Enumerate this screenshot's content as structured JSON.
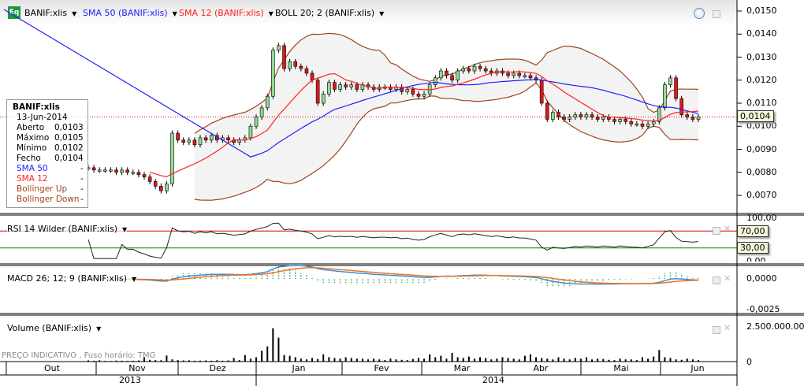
{
  "header": {
    "symbol": "BANIF:xlis",
    "sma50": "SMA 50 (BANIF:xlis)",
    "sma12": "SMA 12 (BANIF:xlis)",
    "boll": "BOLL 20; 2 (BANIF:xlis)",
    "logo": "Eq"
  },
  "info_box": {
    "title": "BANIF:xlis",
    "date": "13-Jun-2014",
    "rows": [
      {
        "label": "Aberto",
        "value": "0,0103"
      },
      {
        "label": "Máximo",
        "value": "0,0105"
      },
      {
        "label": "Mínimo",
        "value": "0,0102"
      },
      {
        "label": "Fecho",
        "value": "0,0104"
      },
      {
        "label": "SMA 50",
        "value": "-"
      },
      {
        "label": "SMA 12",
        "value": "-"
      },
      {
        "label": "Bollinger Up",
        "value": "-"
      },
      {
        "label": "Bollinger Down",
        "value": "-"
      }
    ]
  },
  "panels": {
    "rsi": "RSI 14 Wilder (BANIF:xlis)",
    "macd": "MACD 26; 12; 9 (BANIF:xlis)",
    "volume": "Volume (BANIF:xlis)",
    "watermark": "PREÇO INDICATIVO , Fuso horário: TMG"
  },
  "axes": {
    "price_ticks": [
      "0,0150",
      "0,0140",
      "0,0130",
      "0,0120",
      "0,0110",
      "0,0100",
      "0,0090",
      "0,0080",
      "0,0070"
    ],
    "last_price": "0,0104",
    "rsi_ticks": [
      "100,00",
      "70,00",
      "30,00",
      "0,00"
    ],
    "macd_ticks": [
      "0,0000",
      "-0,0025"
    ],
    "volume_ticks": [
      "2.500.000.000",
      "0"
    ],
    "months": [
      "Out",
      "Nov",
      "Dez",
      "Jan",
      "Fev",
      "Mar",
      "Abr",
      "Mai",
      "Jun"
    ],
    "years": [
      "2013",
      "2014"
    ]
  },
  "colors": {
    "sma50": "#2020ff",
    "sma12": "#ff2020",
    "boll": "#a0441a",
    "up": "#90dc90",
    "down": "#e01818",
    "rsi_high": "#d00000",
    "rsi_low": "#008000",
    "macd": "#3a8fd8",
    "signal": "#f07020"
  },
  "chart_data": {
    "type": "candlestick",
    "ylim": [
      0.0065,
      0.0152
    ],
    "closes": [
      0.0082,
      0.0081,
      0.0081,
      0.0081,
      0.0081,
      0.008,
      0.0081,
      0.008,
      0.008,
      0.0079,
      0.0078,
      0.0076,
      0.0074,
      0.0072,
      0.0075,
      0.0097,
      0.0094,
      0.0093,
      0.0094,
      0.0092,
      0.0095,
      0.0094,
      0.0096,
      0.0094,
      0.0095,
      0.0094,
      0.0093,
      0.0094,
      0.0095,
      0.01,
      0.0104,
      0.0108,
      0.0113,
      0.0133,
      0.0135,
      0.0125,
      0.0128,
      0.0126,
      0.0125,
      0.0123,
      0.012,
      0.011,
      0.0114,
      0.0119,
      0.0116,
      0.0118,
      0.0117,
      0.0118,
      0.0116,
      0.0118,
      0.0117,
      0.0116,
      0.0117,
      0.0117,
      0.0116,
      0.0117,
      0.0115,
      0.0116,
      0.0114,
      0.0113,
      0.0114,
      0.0118,
      0.0121,
      0.0124,
      0.0122,
      0.012,
      0.0124,
      0.0125,
      0.0124,
      0.0126,
      0.0125,
      0.0124,
      0.0123,
      0.0124,
      0.0123,
      0.0122,
      0.0123,
      0.0122,
      0.0122,
      0.0121,
      0.012,
      0.011,
      0.0103,
      0.0106,
      0.0104,
      0.0103,
      0.0104,
      0.0105,
      0.0104,
      0.0105,
      0.0104,
      0.0103,
      0.0104,
      0.0103,
      0.0102,
      0.0103,
      0.0102,
      0.0101,
      0.0101,
      0.01,
      0.0101,
      0.0102,
      0.0108,
      0.0118,
      0.0121,
      0.0112,
      0.0105,
      0.0104,
      0.0103,
      0.0104
    ],
    "volumes_millions": [
      80,
      60,
      90,
      50,
      40,
      70,
      60,
      50,
      60,
      80,
      300,
      120,
      100,
      90,
      420,
      150,
      100,
      80,
      90,
      60,
      70,
      80,
      60,
      90,
      60,
      80,
      250,
      100,
      450,
      200,
      300,
      750,
      1050,
      2300,
      1650,
      450,
      400,
      300,
      200,
      150,
      250,
      180,
      500,
      300,
      250,
      200,
      300,
      250,
      200,
      200,
      150,
      200,
      150,
      100,
      200,
      150,
      120,
      100,
      180,
      250,
      200,
      500,
      300,
      400,
      200,
      600,
      300,
      250,
      350,
      200,
      300,
      250,
      150,
      200,
      300,
      250,
      200,
      150,
      400,
      500,
      300,
      250,
      200,
      150,
      300,
      200,
      150,
      250,
      200,
      300,
      150,
      200,
      180,
      120,
      100,
      200,
      150,
      150,
      100,
      300,
      200,
      350,
      800,
      300,
      250,
      150,
      120,
      200,
      150,
      100
    ],
    "rsi_levels": [
      70,
      30
    ],
    "rsi_range": [
      0,
      100
    ],
    "macd_range": [
      -0.0033,
      0.0011
    ],
    "volume_max": 3200
  }
}
